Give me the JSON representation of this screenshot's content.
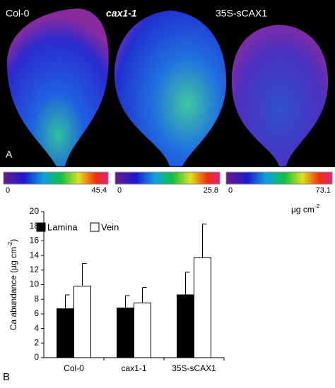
{
  "panel_a": {
    "label": "A",
    "leaves": [
      "Col-0",
      "cax1-1",
      "35S-sCAX1"
    ],
    "scales": [
      {
        "min": 0,
        "max": 45.4
      },
      {
        "min": 0,
        "max": 25.8
      },
      {
        "min": 0,
        "max": 73.1
      }
    ],
    "unit": {
      "base": "µg cm",
      "exp": "-2"
    }
  },
  "chart_data": {
    "type": "bar",
    "panel_label": "B",
    "ylabel": {
      "base": "Ca abundance (µg cm",
      "exp": "-2",
      "close": ")"
    },
    "categories": [
      "Col-0",
      "cax1-1",
      "35S-sCAX1"
    ],
    "series": [
      {
        "name": "Lamina",
        "color": "#000000",
        "values": [
          6.7,
          6.8,
          8.6
        ],
        "errors": [
          1.9,
          1.7,
          3.1
        ]
      },
      {
        "name": "Vein",
        "color": "#ffffff",
        "values": [
          9.8,
          7.5,
          13.7
        ],
        "errors": [
          3.1,
          2.1,
          4.6
        ]
      }
    ],
    "ylim": [
      0,
      20
    ],
    "yticks": [
      0,
      2,
      4,
      6,
      8,
      10,
      12,
      14,
      16,
      18,
      20
    ],
    "legend": "top-left"
  }
}
